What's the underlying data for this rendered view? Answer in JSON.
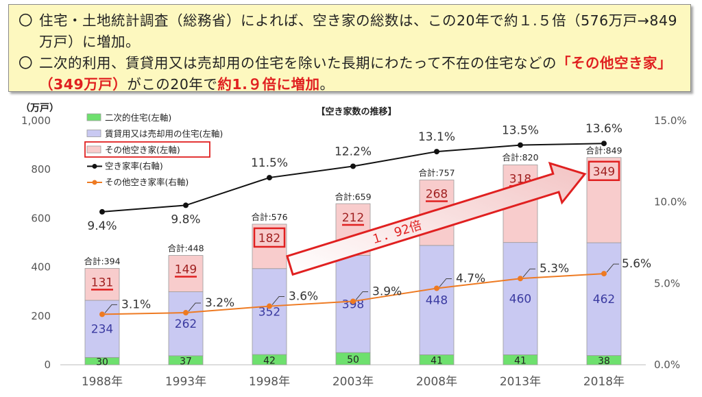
{
  "notes": [
    {
      "bullet": "〇",
      "text": "住宅・土地統計調査（総務省）によれば、空き家の総数は、この20年で約１.５倍（576万戸→849万戸）に増加。"
    },
    {
      "bullet": "〇",
      "text_before": "二次的利用、賃貸用又は売却用の住宅を除いた長期にわたって不在の住宅などの",
      "red1": "「その他空き家」（349万戸）",
      "text_middle": "がこの20年で",
      "red2": "約1.９倍に増加",
      "text_after": "。"
    }
  ],
  "chart_data": {
    "type": "bar",
    "title": "【空き家数の推移】",
    "y_unit_label": "（万戸）",
    "categories": [
      "1988年",
      "1993年",
      "1998年",
      "2003年",
      "2008年",
      "2013年",
      "2018年"
    ],
    "ylim": [
      0,
      1000
    ],
    "yticks": [
      "0",
      "200",
      "400",
      "600",
      "800",
      "1,000"
    ],
    "y2lim": [
      0,
      15
    ],
    "y2ticks": [
      "0.0%",
      "5.0%",
      "10.0%",
      "15.0%"
    ],
    "stacked_series": [
      {
        "name": "二次的住宅(左軸)",
        "values": [
          30,
          37,
          42,
          50,
          41,
          41,
          38
        ],
        "color": "#6ee06e"
      },
      {
        "name": "賃貸用又は売却用の住宅(左軸)",
        "values": [
          234,
          262,
          352,
          398,
          448,
          460,
          462
        ],
        "color": "#c9c9f2"
      },
      {
        "name": "その他空き家(左軸)",
        "values": [
          131,
          149,
          182,
          212,
          268,
          318,
          349
        ],
        "color": "#f8cccc"
      }
    ],
    "totals_label": "合計:",
    "totals": [
      394,
      448,
      576,
      659,
      757,
      820,
      849
    ],
    "line_series": [
      {
        "name": "空き家率(右軸)",
        "values": [
          9.4,
          9.8,
          11.5,
          12.2,
          13.1,
          13.5,
          13.6
        ],
        "color": "#111111",
        "labels": [
          "9.4%",
          "9.8%",
          "11.5%",
          "12.2%",
          "13.1%",
          "13.5%",
          "13.6%"
        ]
      },
      {
        "name": "その他空き家率(右軸)",
        "values": [
          3.1,
          3.2,
          3.6,
          3.9,
          4.7,
          5.3,
          5.6
        ],
        "color": "#ee7a22",
        "labels": [
          "3.1%",
          "3.2%",
          "3.6%",
          "3.9%",
          "4.7%",
          "5.3%",
          "5.6%"
        ]
      }
    ],
    "annotation": "１．92倍",
    "colors": {
      "red": "#e02020",
      "series_value_text": "#3a3aa0",
      "axis_text": "#555555"
    }
  }
}
